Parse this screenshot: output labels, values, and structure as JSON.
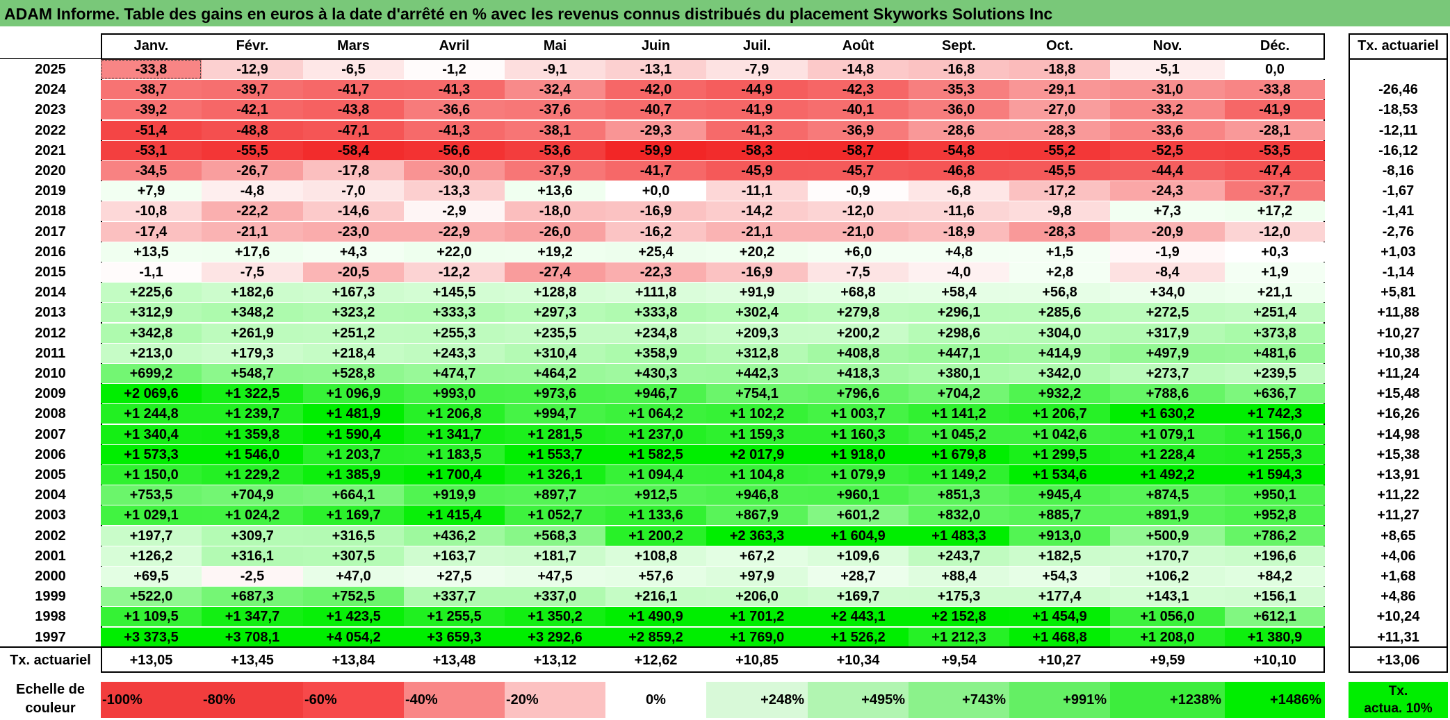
{
  "title": "ADAM Informe. Table des gains en euros à la date d'arrêté en % avec les revenus connus distribués du placement Skyworks Solutions Inc",
  "months": [
    "Janv.",
    "Févr.",
    "Mars",
    "Avril",
    "Mai",
    "Juin",
    "Juil.",
    "Août",
    "Sept.",
    "Oct.",
    "Nov.",
    "Déc."
  ],
  "actuarial_header": "Tx. actuariel",
  "rows": [
    {
      "year": "2025",
      "values": [
        "-33,8",
        "-12,9",
        "-6,5",
        "-1,2",
        "-9,1",
        "-13,1",
        "-7,9",
        "-14,8",
        "-16,8",
        "-18,8",
        "-5,1",
        "0,0"
      ],
      "rate": ""
    },
    {
      "year": "2024",
      "values": [
        "-38,7",
        "-39,7",
        "-41,7",
        "-41,3",
        "-32,4",
        "-42,0",
        "-44,9",
        "-42,3",
        "-35,3",
        "-29,1",
        "-31,0",
        "-33,8"
      ],
      "rate": "-26,46"
    },
    {
      "year": "2023",
      "values": [
        "-39,2",
        "-42,1",
        "-43,8",
        "-36,6",
        "-37,6",
        "-40,7",
        "-41,9",
        "-40,1",
        "-36,0",
        "-27,0",
        "-33,2",
        "-41,9"
      ],
      "rate": "-18,53"
    },
    {
      "year": "2022",
      "values": [
        "-51,4",
        "-48,8",
        "-47,1",
        "-41,3",
        "-38,1",
        "-29,3",
        "-41,3",
        "-36,9",
        "-28,6",
        "-28,3",
        "-33,6",
        "-28,1"
      ],
      "rate": "-12,11"
    },
    {
      "year": "2021",
      "values": [
        "-53,1",
        "-55,5",
        "-58,4",
        "-56,6",
        "-53,6",
        "-59,9",
        "-58,3",
        "-58,7",
        "-54,8",
        "-55,2",
        "-52,5",
        "-53,5"
      ],
      "rate": "-16,12"
    },
    {
      "year": "2020",
      "values": [
        "-34,5",
        "-26,7",
        "-17,8",
        "-30,0",
        "-37,9",
        "-41,7",
        "-45,9",
        "-45,7",
        "-46,8",
        "-45,5",
        "-44,4",
        "-47,4"
      ],
      "rate": "-8,16"
    },
    {
      "year": "2019",
      "values": [
        "+7,9",
        "-4,8",
        "-7,0",
        "-13,3",
        "+13,6",
        "+0,0",
        "-11,1",
        "-0,9",
        "-6,8",
        "-17,2",
        "-24,3",
        "-37,7"
      ],
      "rate": "-1,67"
    },
    {
      "year": "2018",
      "values": [
        "-10,8",
        "-22,2",
        "-14,6",
        "-2,9",
        "-18,0",
        "-16,9",
        "-14,2",
        "-12,0",
        "-11,6",
        "-9,8",
        "+7,3",
        "+17,2"
      ],
      "rate": "-1,41"
    },
    {
      "year": "2017",
      "values": [
        "-17,4",
        "-21,1",
        "-23,0",
        "-22,9",
        "-26,0",
        "-16,2",
        "-21,1",
        "-21,0",
        "-18,9",
        "-28,3",
        "-20,9",
        "-12,0"
      ],
      "rate": "-2,76"
    },
    {
      "year": "2016",
      "values": [
        "+13,5",
        "+17,6",
        "+4,3",
        "+22,0",
        "+19,2",
        "+25,4",
        "+20,2",
        "+6,0",
        "+4,8",
        "+1,5",
        "-1,9",
        "+0,3"
      ],
      "rate": "+1,03"
    },
    {
      "year": "2015",
      "values": [
        "-1,1",
        "-7,5",
        "-20,5",
        "-12,2",
        "-27,4",
        "-22,3",
        "-16,9",
        "-7,5",
        "-4,0",
        "+2,8",
        "-8,4",
        "+1,9"
      ],
      "rate": "-1,14"
    },
    {
      "year": "2014",
      "values": [
        "+225,6",
        "+182,6",
        "+167,3",
        "+145,5",
        "+128,8",
        "+111,8",
        "+91,9",
        "+68,8",
        "+58,4",
        "+56,8",
        "+34,0",
        "+21,1"
      ],
      "rate": "+5,81"
    },
    {
      "year": "2013",
      "values": [
        "+312,9",
        "+348,2",
        "+323,2",
        "+333,3",
        "+297,3",
        "+333,8",
        "+302,4",
        "+279,8",
        "+296,1",
        "+285,6",
        "+272,5",
        "+251,4"
      ],
      "rate": "+11,88"
    },
    {
      "year": "2012",
      "values": [
        "+342,8",
        "+261,9",
        "+251,2",
        "+255,3",
        "+235,5",
        "+234,8",
        "+209,3",
        "+200,2",
        "+298,6",
        "+304,0",
        "+317,9",
        "+373,8"
      ],
      "rate": "+10,27"
    },
    {
      "year": "2011",
      "values": [
        "+213,0",
        "+179,3",
        "+218,4",
        "+243,3",
        "+310,4",
        "+358,9",
        "+312,8",
        "+408,8",
        "+447,1",
        "+414,9",
        "+497,9",
        "+481,6"
      ],
      "rate": "+10,38"
    },
    {
      "year": "2010",
      "values": [
        "+699,2",
        "+548,7",
        "+528,8",
        "+474,7",
        "+464,2",
        "+430,3",
        "+442,3",
        "+418,3",
        "+380,1",
        "+342,0",
        "+273,7",
        "+239,5"
      ],
      "rate": "+11,24"
    },
    {
      "year": "2009",
      "values": [
        "+2 069,6",
        "+1 322,5",
        "+1 096,9",
        "+993,0",
        "+973,6",
        "+946,7",
        "+754,1",
        "+796,6",
        "+704,2",
        "+932,2",
        "+788,6",
        "+636,7"
      ],
      "rate": "+15,48"
    },
    {
      "year": "2008",
      "values": [
        "+1 244,8",
        "+1 239,7",
        "+1 481,9",
        "+1 206,8",
        "+994,7",
        "+1 064,2",
        "+1 102,2",
        "+1 003,7",
        "+1 141,2",
        "+1 206,7",
        "+1 630,2",
        "+1 742,3"
      ],
      "rate": "+16,26"
    },
    {
      "year": "2007",
      "values": [
        "+1 340,4",
        "+1 359,8",
        "+1 590,4",
        "+1 341,7",
        "+1 281,5",
        "+1 237,0",
        "+1 159,3",
        "+1 160,3",
        "+1 045,2",
        "+1 042,6",
        "+1 079,1",
        "+1 156,0"
      ],
      "rate": "+14,98"
    },
    {
      "year": "2006",
      "values": [
        "+1 573,3",
        "+1 546,0",
        "+1 203,7",
        "+1 183,5",
        "+1 553,7",
        "+1 582,5",
        "+2 017,9",
        "+1 918,0",
        "+1 679,8",
        "+1 299,5",
        "+1 228,4",
        "+1 255,3"
      ],
      "rate": "+15,38"
    },
    {
      "year": "2005",
      "values": [
        "+1 150,0",
        "+1 229,2",
        "+1 385,9",
        "+1 700,4",
        "+1 326,1",
        "+1 094,4",
        "+1 104,8",
        "+1 079,9",
        "+1 149,2",
        "+1 534,6",
        "+1 492,2",
        "+1 594,3"
      ],
      "rate": "+13,91"
    },
    {
      "year": "2004",
      "values": [
        "+753,5",
        "+704,9",
        "+664,1",
        "+919,9",
        "+897,7",
        "+912,5",
        "+946,8",
        "+960,1",
        "+851,3",
        "+945,4",
        "+874,5",
        "+950,1"
      ],
      "rate": "+11,22"
    },
    {
      "year": "2003",
      "values": [
        "+1 029,1",
        "+1 024,2",
        "+1 169,7",
        "+1 415,4",
        "+1 052,7",
        "+1 133,6",
        "+867,9",
        "+601,2",
        "+832,0",
        "+885,7",
        "+891,9",
        "+952,8"
      ],
      "rate": "+11,27"
    },
    {
      "year": "2002",
      "values": [
        "+197,7",
        "+309,7",
        "+316,5",
        "+436,2",
        "+568,3",
        "+1 200,2",
        "+2 363,3",
        "+1 604,9",
        "+1 483,3",
        "+913,0",
        "+500,9",
        "+786,2"
      ],
      "rate": "+8,65"
    },
    {
      "year": "2001",
      "values": [
        "+126,2",
        "+316,1",
        "+307,5",
        "+163,7",
        "+181,7",
        "+108,8",
        "+67,2",
        "+109,6",
        "+243,7",
        "+182,5",
        "+170,7",
        "+196,6"
      ],
      "rate": "+4,06"
    },
    {
      "year": "2000",
      "values": [
        "+69,5",
        "-2,5",
        "+47,0",
        "+27,5",
        "+47,5",
        "+57,6",
        "+97,9",
        "+28,7",
        "+88,4",
        "+54,3",
        "+106,2",
        "+84,2"
      ],
      "rate": "+1,68"
    },
    {
      "year": "1999",
      "values": [
        "+522,0",
        "+687,3",
        "+752,5",
        "+337,7",
        "+337,0",
        "+216,1",
        "+206,0",
        "+169,7",
        "+175,3",
        "+177,4",
        "+143,1",
        "+156,1"
      ],
      "rate": "+4,86"
    },
    {
      "year": "1998",
      "values": [
        "+1 109,5",
        "+1 347,7",
        "+1 423,5",
        "+1 255,5",
        "+1 350,2",
        "+1 490,9",
        "+1 701,2",
        "+2 443,1",
        "+2 152,8",
        "+1 454,9",
        "+1 056,0",
        "+612,1"
      ],
      "rate": "+10,24"
    },
    {
      "year": "1997",
      "values": [
        "+3 373,5",
        "+3 708,1",
        "+4 054,2",
        "+3 659,3",
        "+3 292,6",
        "+2 859,2",
        "+1 769,0",
        "+1 526,2",
        "+1 212,3",
        "+1 468,8",
        "+1 208,0",
        "+1 380,9"
      ],
      "rate": "+11,31"
    }
  ],
  "summary": {
    "label": "Tx. actuariel",
    "values": [
      "+13,05",
      "+13,45",
      "+13,84",
      "+13,48",
      "+13,12",
      "+12,62",
      "+10,85",
      "+10,34",
      "+9,54",
      "+10,27",
      "+9,59",
      "+10,10"
    ],
    "overall": "+13,06"
  },
  "scale": {
    "label_line1": "Echelle de",
    "label_line2": "couleur",
    "items": [
      {
        "label": "-100%",
        "color": "#f23d3d",
        "kind": "neg"
      },
      {
        "label": "-80%",
        "color": "#f23d3d",
        "kind": "neg"
      },
      {
        "label": "-60%",
        "color": "#f7494a",
        "kind": "neg"
      },
      {
        "label": "-40%",
        "color": "#f98787",
        "kind": "neg"
      },
      {
        "label": "-20%",
        "color": "#fcc1c1",
        "kind": "neg"
      },
      {
        "label": "0%",
        "color": "#ffffff",
        "kind": "zero"
      },
      {
        "label": "+248%",
        "color": "#d8f9d8",
        "kind": "pos"
      },
      {
        "label": "+495%",
        "color": "#b1f5b1",
        "kind": "pos"
      },
      {
        "label": "+743%",
        "color": "#8bf28b",
        "kind": "pos"
      },
      {
        "label": "+991%",
        "color": "#64ef64",
        "kind": "pos"
      },
      {
        "label": "+1238%",
        "color": "#3ded3d",
        "kind": "pos"
      },
      {
        "label": "+1486%",
        "color": "#00ee00",
        "kind": "pos"
      }
    ],
    "actuarial_line1": "Tx.",
    "actuarial_line2": "actua. 10%",
    "actuarial_color": "#00ee00"
  },
  "colors": {
    "title_bg": "#79c879",
    "negative_max": "#f23d3d",
    "positive_max": "#00ee00"
  }
}
